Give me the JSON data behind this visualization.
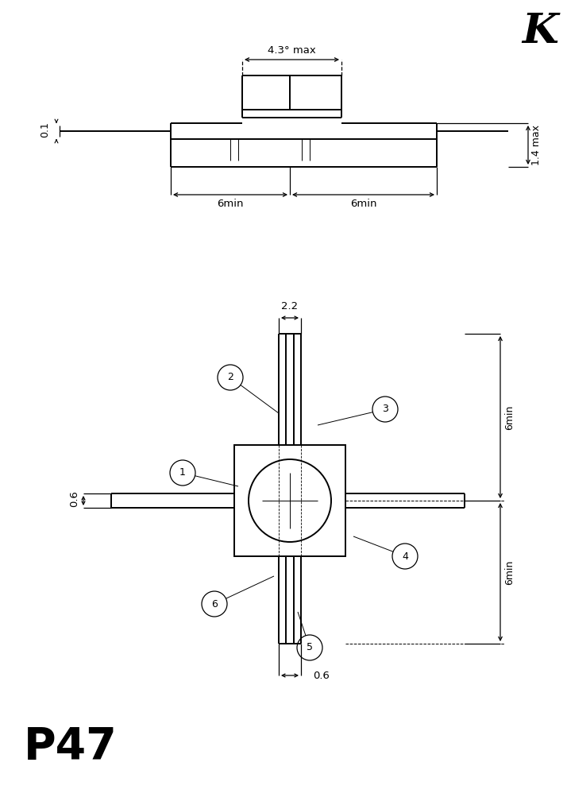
{
  "bg_color": "#ffffff",
  "title_K": "K",
  "label_P47": "P47",
  "top": {
    "dim_43": "4.3° max",
    "dim_14": "1.4 max",
    "dim_01": "0.1",
    "dim_6l": "6min",
    "dim_6r": "6min"
  },
  "bot": {
    "dim_22": "2.2",
    "dim_06l": "0.6",
    "dim_06b": "0.6",
    "dim_6t": "6min",
    "dim_6b": "6min",
    "pins": [
      "1",
      "2",
      "3",
      "4",
      "5",
      "6"
    ]
  }
}
